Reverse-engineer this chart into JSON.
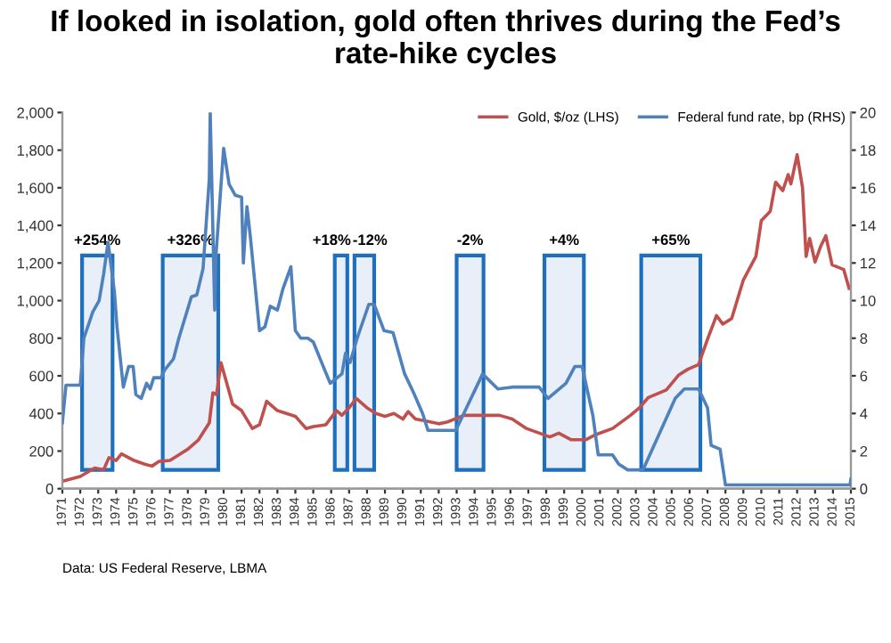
{
  "chart_data": {
    "type": "line",
    "title": "If looked in isolation, gold often thrives during the Fed’s rate-hike cycles",
    "x": [
      1971,
      1972,
      1972.8,
      1973.3,
      1973.6,
      1974,
      1974.3,
      1975,
      1975.6,
      1976,
      1976.4,
      1977,
      1977.5,
      1978,
      1978.6,
      1979.2,
      1979.4,
      1979.6,
      1979.85,
      1980.5,
      1981,
      1981.6,
      1982,
      1982.4,
      1983,
      1983.5,
      1984,
      1984.6,
      1985,
      1985.7,
      1986.3,
      1986.6,
      1987,
      1987.4,
      1988,
      1988.5,
      1989,
      1989.5,
      1990,
      1990.3,
      1990.7,
      1991.3,
      1992,
      1992.5,
      1993.4,
      1995.4,
      1996.1,
      1996.9,
      1998.2,
      1998.7,
      1999.4,
      2000.2,
      2000.7,
      2001.7,
      2002.7,
      2003.2,
      2003.7,
      2004.7,
      2005.4,
      2005.9,
      2006.5,
      2007,
      2007.5,
      2007.85,
      2008.35,
      2009,
      2009.7,
      2010,
      2010.5,
      2010.8,
      2011.2,
      2011.5,
      2011.65,
      2012,
      2012.3,
      2012.5,
      2012.7,
      2013,
      2013.3,
      2013.6,
      2013.95,
      2014.6,
      2014.9
    ],
    "series": [
      {
        "name": "Gold, $/oz (LHS)",
        "color": "#c0504d",
        "values": [
          40,
          65,
          110,
          100,
          165,
          150,
          185,
          150,
          130,
          120,
          145,
          150,
          180,
          210,
          260,
          350,
          510,
          500,
          670,
          450,
          415,
          320,
          340,
          465,
          415,
          400,
          385,
          320,
          330,
          340,
          415,
          390,
          430,
          480,
          430,
          400,
          385,
          400,
          370,
          410,
          370,
          360,
          345,
          355,
          390,
          390,
          370,
          320,
          275,
          295,
          260,
          260,
          285,
          320,
          390,
          430,
          485,
          525,
          605,
          635,
          660,
          795,
          920,
          875,
          905,
          1110,
          1235,
          1425,
          1475,
          1630,
          1585,
          1670,
          1620,
          1775,
          1600,
          1235,
          1330,
          1205,
          1285,
          1345,
          1190,
          1165,
          1065
        ]
      },
      {
        "name": "Federal fund rate, bp (RHS)",
        "color": "#4f81bd",
        "axis": "y2",
        "x": [
          1971,
          1971.2,
          1972,
          1972.2,
          1972.7,
          1973.05,
          1973.3,
          1973.55,
          1973.9,
          1974.05,
          1974.4,
          1974.7,
          1974.95,
          1975.1,
          1975.4,
          1975.7,
          1975.9,
          1976.1,
          1976.5,
          1976.7,
          1977.2,
          1977.5,
          1978.2,
          1978.5,
          1978.85,
          1979.2,
          1979.25,
          1979.5,
          1979.57,
          1980,
          1980.3,
          1980.65,
          1981,
          1981.1,
          1981.3,
          1981.5,
          1982,
          1982.3,
          1982.6,
          1983,
          1983.3,
          1983.75,
          1984,
          1984.3,
          1984.7,
          1985,
          1985.6,
          1985.95,
          1986.6,
          1986.8,
          1987.05,
          1987.45,
          1988.1,
          1988.4,
          1988.95,
          1989.45,
          1990.1,
          1990.6,
          1991.1,
          1991.4,
          1992.1,
          1992.95,
          1994.45,
          1995.3,
          1996.1,
          1997.6,
          1998.1,
          1999.1,
          1999.6,
          2000,
          2000.6,
          2000.9,
          2001.7,
          2002.05,
          2002.55,
          2003.4,
          2005.2,
          2005.7,
          2006.5,
          2007,
          2007.2,
          2007.7,
          2008,
          2014.95,
          2015
        ],
        "values": [
          3.5,
          5.5,
          5.5,
          8,
          9.4,
          10,
          11.4,
          13.1,
          10.5,
          8.6,
          5.4,
          6.5,
          6.5,
          5,
          4.8,
          5.6,
          5.3,
          5.9,
          5.9,
          6.3,
          6.9,
          8,
          10.2,
          10.3,
          11.7,
          16.5,
          20,
          9.5,
          12.4,
          18.1,
          16.2,
          15.6,
          15.5,
          12,
          15,
          13.3,
          8.4,
          8.6,
          9.7,
          9.5,
          10.6,
          11.8,
          8.4,
          8,
          8,
          7.8,
          6.4,
          5.6,
          6.1,
          7.2,
          6.7,
          8,
          9.8,
          9.8,
          8.4,
          8.3,
          6.1,
          5.1,
          4,
          3.1,
          3.1,
          3.1,
          6.1,
          5.3,
          5.4,
          5.4,
          4.8,
          5.6,
          6.5,
          6.5,
          3.9,
          1.8,
          1.8,
          1.3,
          1,
          1,
          4.8,
          5.3,
          5.3,
          4.3,
          2.3,
          2.1,
          0.2,
          0.2,
          0.5
        ]
      }
    ],
    "xlim": [
      1971,
      2015
    ],
    "xticks": [
      1971,
      1972,
      1973,
      1974,
      1975,
      1976,
      1977,
      1978,
      1979,
      1980,
      1981,
      1982,
      1983,
      1984,
      1985,
      1986,
      1987,
      1988,
      1989,
      1990,
      1991,
      1992,
      1993,
      1994,
      1995,
      1996,
      1997,
      1998,
      1999,
      2000,
      2001,
      2002,
      2003,
      2004,
      2005,
      2006,
      2007,
      2008,
      2009,
      2010,
      2011,
      2012,
      2013,
      2014,
      2015
    ],
    "ylim": [
      0,
      2000
    ],
    "yticks": [
      0,
      {
        "value": 200,
        "label": "200"
      },
      {
        "value": 400,
        "label": "400"
      },
      {
        "value": 600,
        "label": "600"
      },
      {
        "value": 800,
        "label": "800"
      },
      {
        "value": 1000,
        "label": "1,000"
      },
      {
        "value": 1200,
        "label": "1,200"
      },
      {
        "value": 1400,
        "label": "1,400"
      },
      {
        "value": 1600,
        "label": "1,600"
      },
      {
        "value": 1800,
        "label": "1,800"
      },
      {
        "value": 2000,
        "label": "2,000"
      }
    ],
    "y2lim": [
      0,
      20
    ],
    "y2ticks": [
      0,
      2,
      4,
      6,
      8,
      10,
      12,
      14,
      16,
      18,
      20
    ],
    "bands": [
      {
        "axis": "x",
        "from": 1972.1,
        "to": 1973.8,
        "label": "+254%",
        "color": "#1f6fbf"
      },
      {
        "axis": "x",
        "from": 1976.6,
        "to": 1979.7,
        "label": "+326%",
        "color": "#1f6fbf"
      },
      {
        "axis": "x",
        "from": 1986.2,
        "to": 1986.9,
        "label": "+18%",
        "color": "#1f6fbf"
      },
      {
        "axis": "x",
        "from": 1987.3,
        "to": 1988.4,
        "label": "-12%",
        "color": "#1f6fbf"
      },
      {
        "axis": "x",
        "from": 1993.0,
        "to": 1994.5,
        "label": "-2%",
        "color": "#1f6fbf"
      },
      {
        "axis": "x",
        "from": 1997.9,
        "to": 2000.1,
        "label": "+4%",
        "color": "#1f6fbf"
      },
      {
        "axis": "x",
        "from": 2003.3,
        "to": 2006.6,
        "label": "+65%",
        "color": "#1f6fbf"
      }
    ],
    "annotations": [
      "Data: US Federal Reserve, LBMA"
    ],
    "legend": "top right",
    "grid": false,
    "marker": "none",
    "line_style": "solid"
  }
}
